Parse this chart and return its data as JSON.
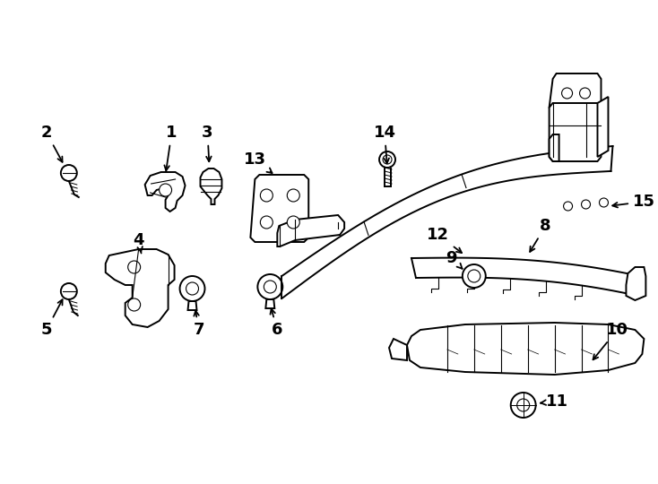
{
  "background_color": "#ffffff",
  "line_color": "#000000",
  "figsize": [
    7.34,
    5.4
  ],
  "dpi": 100,
  "label_fontsize": 13,
  "lw_main": 1.4,
  "lw_thin": 0.8,
  "lw_thick": 2.0
}
